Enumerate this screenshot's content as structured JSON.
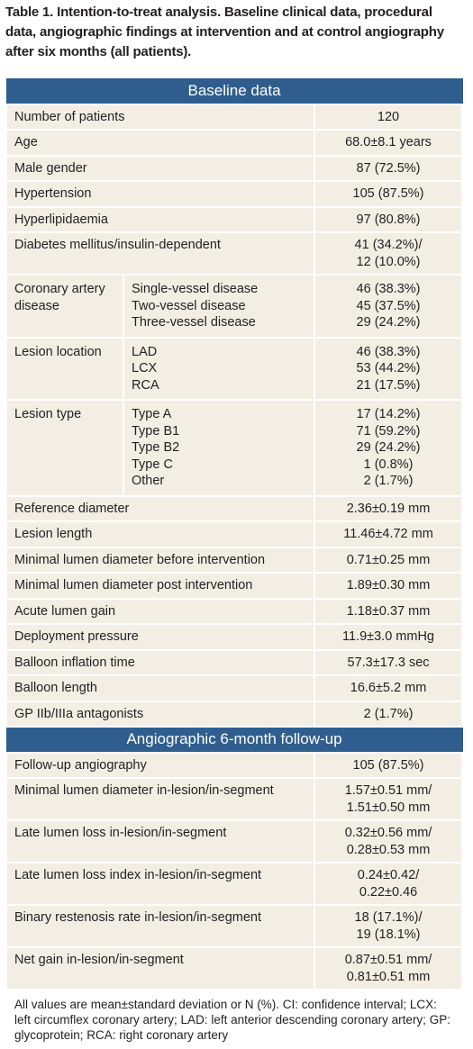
{
  "title": "Table 1. Intention-to-treat analysis. Baseline clinical data, procedural data, angiographic findings at intervention and at control angiography after six months (all patients).",
  "sections": [
    {
      "heading": "Baseline data",
      "rows": [
        {
          "label": "Number of patients",
          "value": [
            "120"
          ]
        },
        {
          "label": "Age",
          "value": [
            "68.0±8.1 years"
          ]
        },
        {
          "label": "Male gender",
          "value": [
            "87 (72.5%)"
          ]
        },
        {
          "label": "Hypertension",
          "value": [
            "105 (87.5%)"
          ]
        },
        {
          "label": "Hyperlipidaemia",
          "value": [
            "97 (80.8%)"
          ]
        },
        {
          "label": "Diabetes mellitus/insulin-dependent",
          "value": [
            "41 (34.2%)/",
            "12 (10.0%)"
          ]
        },
        {
          "label": "Coronary artery disease",
          "items": [
            {
              "label": "Single-vessel disease",
              "value": "46 (38.3%)"
            },
            {
              "label": "Two-vessel disease",
              "value": "45 (37.5%)"
            },
            {
              "label": "Three-vessel disease",
              "value": "29 (24.2%)"
            }
          ]
        },
        {
          "label": "Lesion location",
          "items": [
            {
              "label": "LAD",
              "value": "46 (38.3%)"
            },
            {
              "label": "LCX",
              "value": "53 (44.2%)"
            },
            {
              "label": "RCA",
              "value": "21 (17.5%)"
            }
          ]
        },
        {
          "label": "Lesion type",
          "items": [
            {
              "label": "Type A",
              "value": "17 (14.2%)"
            },
            {
              "label": "Type B1",
              "value": "71 (59.2%)"
            },
            {
              "label": "Type B2",
              "value": "29 (24.2%)"
            },
            {
              "label": "Type C",
              "value": "1 (0.8%)"
            },
            {
              "label": "Other",
              "value": "2 (1.7%)"
            }
          ]
        },
        {
          "label": "Reference diameter",
          "value": [
            "2.36±0.19 mm"
          ]
        },
        {
          "label": "Lesion length",
          "value": [
            "11.46±4.72 mm"
          ]
        },
        {
          "label": "Minimal lumen diameter before intervention",
          "value": [
            "0.71±0.25 mm"
          ]
        },
        {
          "label": "Minimal lumen diameter post intervention",
          "value": [
            "1.89±0.30 mm"
          ]
        },
        {
          "label": "Acute lumen gain",
          "value": [
            "1.18±0.37 mm"
          ]
        },
        {
          "label": "Deployment pressure",
          "value": [
            "11.9±3.0 mmHg"
          ]
        },
        {
          "label": "Balloon inflation time",
          "value": [
            "57.3±17.3 sec"
          ]
        },
        {
          "label": "Balloon length",
          "value": [
            "16.6±5.2 mm"
          ]
        },
        {
          "label": "GP IIb/IIIa antagonists",
          "value": [
            "2 (1.7%)"
          ]
        }
      ]
    },
    {
      "heading": "Angiographic 6-month follow-up",
      "rows": [
        {
          "label": "Follow-up angiography",
          "value": [
            "105 (87.5%)"
          ]
        },
        {
          "label": "Minimal lumen diameter in-lesion/in-segment",
          "value": [
            "1.57±0.51 mm/",
            "1.51±0.50 mm"
          ]
        },
        {
          "label": "Late lumen loss in-lesion/in-segment",
          "value": [
            "0.32±0.56 mm/",
            "0.28±0.53 mm"
          ]
        },
        {
          "label": "Late lumen loss index in-lesion/in-segment",
          "value": [
            "0.24±0.42/",
            "0.22±0.46"
          ]
        },
        {
          "label": "Binary restenosis rate in-lesion/in-segment",
          "value": [
            "18 (17.1%)/",
            "19 (18.1%)"
          ]
        },
        {
          "label": "Net gain in-lesion/in-segment",
          "value": [
            "0.87±0.51 mm/",
            "0.81±0.51 mm"
          ]
        }
      ]
    }
  ],
  "footnote": "All values are mean±standard deviation or N (%). CI: confidence interval; LCX: left circumflex coronary artery; LAD: left anterior descending coronary artery; GP: glycoprotein; RCA: right coronary artery"
}
